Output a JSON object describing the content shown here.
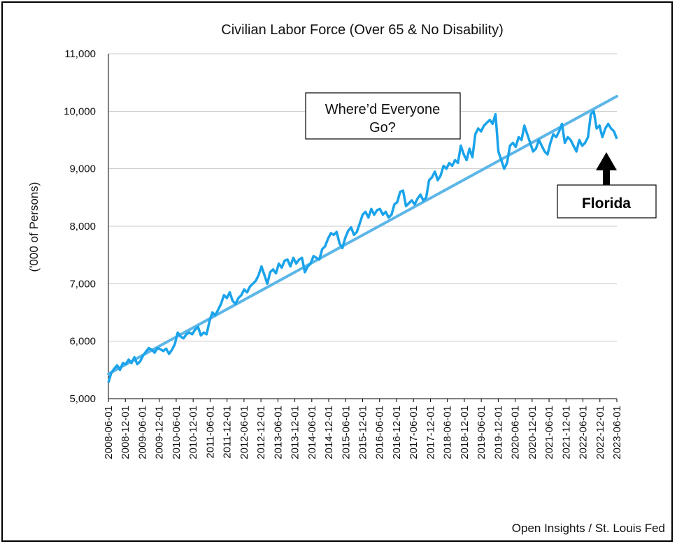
{
  "chart_data": {
    "type": "line",
    "title": "Civilian Labor Force (Over 65 & No Disability)",
    "ylabel": "('000 of Persons)",
    "ylim": [
      5000,
      11000
    ],
    "yticks": [
      5000,
      6000,
      7000,
      8000,
      9000,
      10000,
      11000
    ],
    "ytick_labels": [
      "5,000",
      "6,000",
      "7,000",
      "8,000",
      "9,000",
      "10,000",
      "11,000"
    ],
    "xticks": [
      "2008-06-01",
      "2008-12-01",
      "2009-06-01",
      "2009-12-01",
      "2010-06-01",
      "2010-12-01",
      "2011-06-01",
      "2011-12-01",
      "2012-06-01",
      "2012-12-01",
      "2013-06-01",
      "2013-12-01",
      "2014-06-01",
      "2014-12-01",
      "2015-06-01",
      "2015-12-01",
      "2016-06-01",
      "2016-12-01",
      "2017-06-01",
      "2017-12-01",
      "2018-06-01",
      "2018-12-01",
      "2019-06-01",
      "2019-12-01",
      "2020-06-01",
      "2020-12-01",
      "2021-06-01",
      "2021-12-01",
      "2022-06-01",
      "2022-12-01",
      "2023-06-01"
    ],
    "grid": true,
    "series": [
      {
        "values": [
          5280,
          5450,
          5520,
          5580,
          5500,
          5620,
          5600,
          5680,
          5620,
          5720,
          5600,
          5650,
          5750,
          5820,
          5880,
          5850,
          5800,
          5880,
          5860,
          5830,
          5870,
          5780,
          5850,
          5950,
          6150,
          6080,
          6050,
          6120,
          6150,
          6120,
          6200,
          6250,
          6100,
          6150,
          6120,
          6350,
          6500,
          6450,
          6550,
          6650,
          6800,
          6750,
          6850,
          6700,
          6650,
          6750,
          6800,
          6900,
          6850,
          6950,
          7000,
          7050,
          7150,
          7300,
          7150,
          7000,
          7200,
          7250,
          7180,
          7350,
          7280,
          7400,
          7420,
          7300,
          7450,
          7350,
          7420,
          7450,
          7200,
          7300,
          7350,
          7480,
          7450,
          7420,
          7600,
          7650,
          7780,
          7880,
          7850,
          7900,
          7700,
          7620,
          7800,
          7920,
          7980,
          7850,
          7900,
          8050,
          8200,
          8250,
          8150,
          8300,
          8200,
          8280,
          8300,
          8200,
          8250,
          8150,
          8200,
          8380,
          8420,
          8600,
          8620,
          8350,
          8400,
          8450,
          8380,
          8480,
          8550,
          8450,
          8500,
          8800,
          8850,
          8950,
          8800,
          8880,
          9050,
          9000,
          9100,
          9050,
          9150,
          9100,
          9400,
          9250,
          9150,
          9350,
          9200,
          9600,
          9700,
          9650,
          9750,
          9800,
          9850,
          9780,
          9950,
          9300,
          9150,
          9000,
          9100,
          9400,
          9450,
          9380,
          9550,
          9500,
          9750,
          9600,
          9450,
          9300,
          9350,
          9500,
          9400,
          9300,
          9250,
          9450,
          9600,
          9550,
          9650,
          9780,
          9450,
          9550,
          9500,
          9400,
          9300,
          9500,
          9400,
          9450,
          9550,
          9950,
          10000,
          9700,
          9750,
          9550,
          9700,
          9780,
          9700,
          9650,
          9520
        ]
      },
      {
        "name": "trend",
        "values": [
          5430,
          10260
        ]
      }
    ],
    "annotations": [
      {
        "text_line1": "Where’d Everyone",
        "text_line2": "Go?"
      },
      {
        "text": "Florida"
      }
    ]
  },
  "source": "Open Insights / St. Louis Fed",
  "colors": {
    "line": "#1aa3ea",
    "trend": "#5cb6e8",
    "grid": "#c8c8c8",
    "axis": "#000000"
  }
}
